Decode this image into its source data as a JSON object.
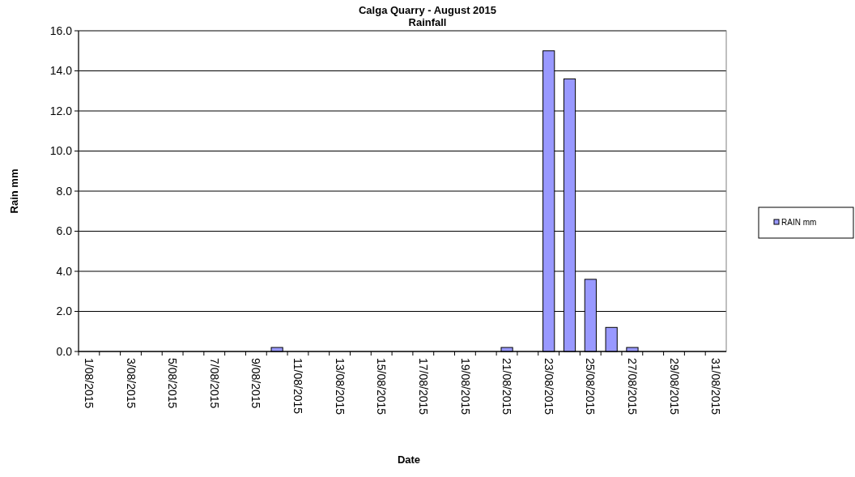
{
  "chart_data": {
    "type": "bar",
    "title": "Calga Quarry - August 2015",
    "subtitle": "Rainfall",
    "xlabel": "Date",
    "ylabel": "Rain mm",
    "categories": [
      "1/08/2015",
      null,
      "3/08/2015",
      null,
      "5/08/2015",
      null,
      "7/08/2015",
      null,
      "9/08/2015",
      null,
      "11/08/2015",
      null,
      "13/08/2015",
      null,
      "15/08/2015",
      null,
      "17/08/2015",
      null,
      "19/08/2015",
      null,
      "21/08/2015",
      null,
      "23/08/2015",
      null,
      "25/08/2015",
      null,
      "27/08/2015",
      null,
      "29/08/2015",
      null,
      "31/08/2015"
    ],
    "series": [
      {
        "name": "RAIN mm",
        "color": "#9999ff",
        "values": [
          0,
          0,
          0,
          0,
          0,
          0,
          0,
          0,
          0,
          0.2,
          0,
          0,
          0,
          0,
          0,
          0,
          0,
          0,
          0,
          0,
          0.2,
          0,
          15.0,
          13.6,
          3.6,
          1.2,
          0.2,
          0,
          0,
          0,
          0
        ]
      }
    ],
    "ylim": [
      0,
      16
    ],
    "yticks": [
      "0.0",
      {
        "value": 2,
        "label": "2.0"
      },
      {
        "value": 4,
        "label": "4.0"
      },
      {
        "value": 6,
        "label": "6.0"
      },
      {
        "value": 8,
        "label": "8.0"
      },
      {
        "value": 10,
        "label": "10.0"
      },
      {
        "value": 12,
        "label": "12.0"
      },
      {
        "value": 14,
        "label": "14.0"
      },
      {
        "value": 16,
        "label": "16.0"
      }
    ],
    "grid": "y",
    "legend": "right"
  }
}
